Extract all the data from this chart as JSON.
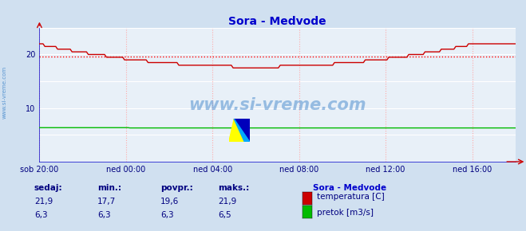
{
  "title": "Sora - Medvode",
  "title_color": "#0000cc",
  "bg_color": "#d0e0f0",
  "plot_bg_color": "#e8f0f8",
  "grid_color_h": "#ffffff",
  "grid_color_v": "#ffaaaa",
  "xlabel_color": "#000080",
  "ylabel_color": "#000080",
  "xtick_labels": [
    "sob 20:00",
    "ned 00:00",
    "ned 04:00",
    "ned 08:00",
    "ned 12:00",
    "ned 16:00"
  ],
  "xtick_positions": [
    0,
    4,
    8,
    12,
    16,
    20
  ],
  "ytick_positions": [
    10,
    20
  ],
  "ylim": [
    0,
    25
  ],
  "xlim": [
    0,
    22
  ],
  "avg_line_y": 19.6,
  "avg_line_color": "#ff0000",
  "temp_color": "#cc0000",
  "flow_color": "#00bb00",
  "watermark_text": "www.si-vreme.com",
  "watermark_color": "#4488cc",
  "watermark_alpha": 0.5,
  "sidebar_text": "www.si-vreme.com",
  "sidebar_color": "#4488cc",
  "legend_title": "Sora - Medvode",
  "legend_title_color": "#0000cc",
  "legend_temp_label": "temperatura [C]",
  "legend_flow_label": "pretok [m3/s]",
  "stats_labels": [
    "sedaj:",
    "min.:",
    "povpr.:",
    "maks.:"
  ],
  "stats_temp": [
    "21,9",
    "17,7",
    "19,6",
    "21,9"
  ],
  "stats_flow": [
    "6,3",
    "6,3",
    "6,3",
    "6,5"
  ],
  "stats_color": "#000080",
  "stats_label_color": "#000080"
}
